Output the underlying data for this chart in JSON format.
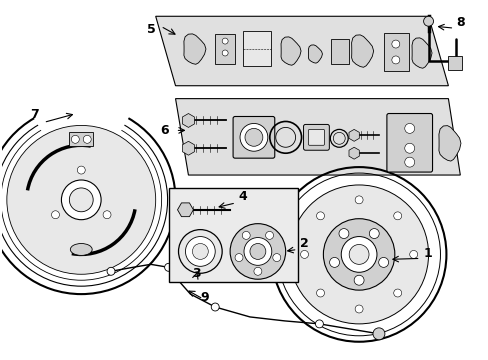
{
  "bg_color": "#ffffff",
  "line_color": "#000000",
  "gray1": "#e8e8e8",
  "gray2": "#d0d0d0",
  "gray3": "#c0c0c0",
  "panel_gray": "#e0e0e0",
  "figsize": [
    4.89,
    3.6
  ],
  "dpi": 100
}
